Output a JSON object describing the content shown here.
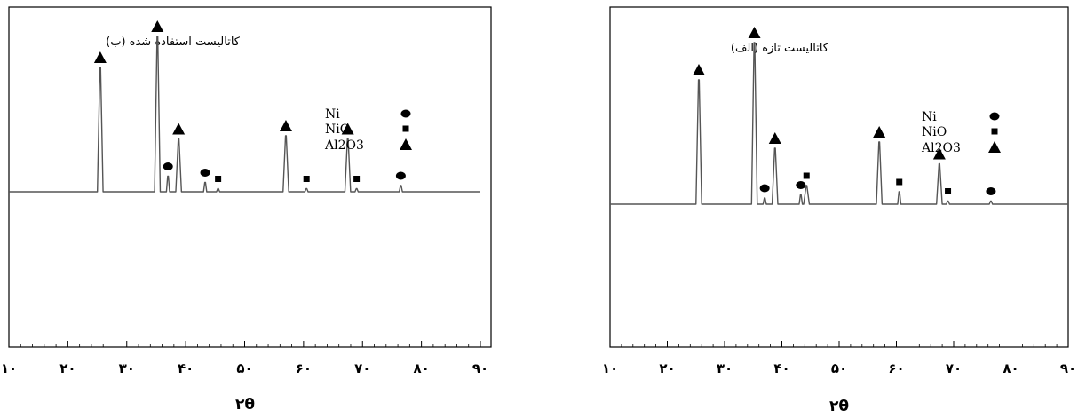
{
  "chart_data": [
    {
      "type": "line",
      "title": "کاتالیست استفاده شده (ب)",
      "xlabel": "۲θ",
      "ylabel": "",
      "xlim": [
        10,
        90
      ],
      "ylim": [
        0,
        100
      ],
      "x_ticks": [
        10,
        20,
        30,
        40,
        50,
        60,
        70,
        80,
        90
      ],
      "x_tick_labels": [
        "۱۰",
        "۲۰",
        "۳۰",
        "۴۰",
        "۵۰",
        "۶۰",
        "۷۰",
        "۸۰",
        "۹۰"
      ],
      "grid": false,
      "legend_position": "top-right",
      "legend": [
        {
          "label": "Ni",
          "marker": "circle"
        },
        {
          "label": "NiO",
          "marker": "square"
        },
        {
          "label": "Al2O3",
          "marker": "triangle"
        }
      ],
      "baseline": 44,
      "peaks": [
        {
          "x": 25.5,
          "y": 84,
          "marker": "triangle"
        },
        {
          "x": 35.2,
          "y": 94,
          "marker": "triangle"
        },
        {
          "x": 37.0,
          "y": 49,
          "marker": "circle"
        },
        {
          "x": 38.8,
          "y": 61,
          "marker": "triangle"
        },
        {
          "x": 43.3,
          "y": 47,
          "marker": "circle"
        },
        {
          "x": 45.5,
          "y": 45,
          "marker": "square"
        },
        {
          "x": 57.0,
          "y": 62,
          "marker": "triangle"
        },
        {
          "x": 60.5,
          "y": 45,
          "marker": "square"
        },
        {
          "x": 67.5,
          "y": 61,
          "marker": "triangle"
        },
        {
          "x": 69.0,
          "y": 45,
          "marker": "square"
        },
        {
          "x": 76.5,
          "y": 46,
          "marker": "circle"
        }
      ]
    },
    {
      "type": "line",
      "title": "کاتالیست تازه (الف)",
      "xlabel": "۲θ",
      "ylabel": "",
      "xlim": [
        10,
        90
      ],
      "ylim": [
        0,
        100
      ],
      "x_ticks": [
        10,
        20,
        30,
        40,
        50,
        60,
        70,
        80,
        90
      ],
      "x_tick_labels": [
        "۱۰",
        "۲۰",
        "۳۰",
        "۴۰",
        "۵۰",
        "۶۰",
        "۷۰",
        "۸۰",
        "۹۰"
      ],
      "grid": false,
      "legend_position": "top-right",
      "legend": [
        {
          "label": "Ni",
          "marker": "circle"
        },
        {
          "label": "NiO",
          "marker": "square"
        },
        {
          "label": "Al2O3",
          "marker": "triangle"
        }
      ],
      "baseline": 40,
      "peaks": [
        {
          "x": 25.5,
          "y": 80,
          "marker": "triangle"
        },
        {
          "x": 35.2,
          "y": 92,
          "marker": "triangle"
        },
        {
          "x": 37.0,
          "y": 42,
          "marker": "circle"
        },
        {
          "x": 38.8,
          "y": 58,
          "marker": "triangle"
        },
        {
          "x": 43.3,
          "y": 43,
          "marker": "circle"
        },
        {
          "x": 44.3,
          "y": 46,
          "marker": "square"
        },
        {
          "x": 57.0,
          "y": 60,
          "marker": "triangle"
        },
        {
          "x": 60.5,
          "y": 44,
          "marker": "square"
        },
        {
          "x": 67.5,
          "y": 53,
          "marker": "triangle"
        },
        {
          "x": 69.0,
          "y": 41,
          "marker": "square"
        },
        {
          "x": 76.5,
          "y": 41,
          "marker": "circle"
        }
      ]
    }
  ]
}
